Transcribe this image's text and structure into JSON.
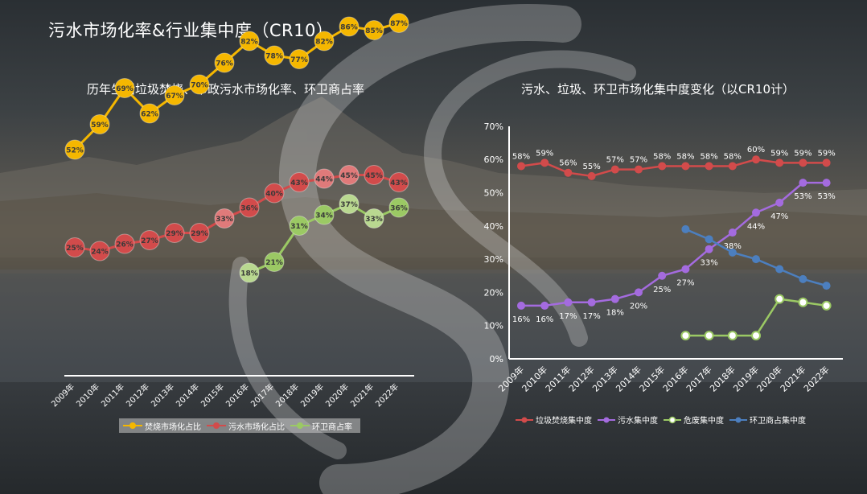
{
  "slide_title": "污水市场化率&行业集中度（CR10）",
  "colors": {
    "yellow": "#f5b700",
    "red": "#d24b4b",
    "green": "#9bc964",
    "purple": "#a46bdf",
    "blue": "#4c7fbf",
    "white": "#ffffff"
  },
  "chart_data": [
    {
      "type": "line",
      "title": "历年生活垃圾焚烧、市政污水市场化率、环卫商占率",
      "categories": [
        "2009年",
        "2010年",
        "2011年",
        "2012年",
        "2013年",
        "2014年",
        "2015年",
        "2016年",
        "2017年",
        "2018年",
        "2019年",
        "2020年",
        "2021年",
        "2022年"
      ],
      "ylim": [
        0,
        100
      ],
      "grid": false,
      "legend_position": "bottom",
      "series": [
        {
          "name": "焚烧市场化占比",
          "color": "#f5b700",
          "values": [
            52,
            59,
            69,
            62,
            67,
            70,
            76,
            82,
            78,
            77,
            82,
            86,
            85,
            87
          ],
          "labels": [
            "52%",
            "59%",
            "69%",
            "62%",
            "67%",
            "70%",
            "76%",
            "82%",
            "78%",
            "77%",
            "82%",
            "86%",
            "85%",
            "87%"
          ]
        },
        {
          "name": "污水市场化占比",
          "color": "#d24b4b",
          "values": [
            25,
            24,
            26,
            27,
            29,
            29,
            33,
            36,
            40,
            43,
            44,
            45,
            45,
            43
          ],
          "labels": [
            "25%",
            "24%",
            "26%",
            "27%",
            "29%",
            "29%",
            "33%",
            "36%",
            "40%",
            "43%",
            "44%",
            "45%",
            "45%",
            "43%"
          ]
        },
        {
          "name": "环卫商占率",
          "color": "#9bc964",
          "values": [
            null,
            null,
            null,
            null,
            null,
            null,
            null,
            18,
            21,
            31,
            34,
            37,
            33,
            36
          ],
          "labels": [
            "",
            "",
            "",
            "",
            "",
            "",
            "",
            "18%",
            "21%",
            "31%",
            "34%",
            "37%",
            "33%",
            "36%"
          ]
        }
      ]
    },
    {
      "type": "line",
      "title": "污水、垃圾、环卫市场化集中度变化（以CR10计）",
      "categories": [
        "2009年",
        "2010年",
        "2011年",
        "2012年",
        "2013年",
        "2014年",
        "2015年",
        "2016年",
        "2017年",
        "2018年",
        "2019年",
        "2020年",
        "2021年",
        "2022年"
      ],
      "ylim": [
        0,
        70
      ],
      "y_ticks": [
        "0%",
        "10%",
        "20%",
        "30%",
        "40%",
        "50%",
        "60%",
        "70%"
      ],
      "grid": false,
      "legend_position": "bottom",
      "series": [
        {
          "name": "垃圾焚烧集中度",
          "color": "#d24b4b",
          "marker": "filled",
          "values": [
            58,
            59,
            56,
            55,
            57,
            57,
            58,
            58,
            58,
            58,
            60,
            59,
            59,
            59
          ],
          "labels": [
            "58%",
            "59%",
            "56%",
            "55%",
            "57%",
            "57%",
            "58%",
            "58%",
            "58%",
            "58%",
            "60%",
            "59%",
            "59%",
            "59%"
          ]
        },
        {
          "name": "污水集中度",
          "color": "#a46bdf",
          "marker": "filled",
          "values": [
            16,
            16,
            17,
            17,
            18,
            20,
            25,
            27,
            33,
            38,
            44,
            47,
            53,
            53
          ],
          "labels": [
            "16%",
            "16%",
            "17%",
            "17%",
            "18%",
            "20%",
            "25%",
            "27%",
            "33%",
            "38%",
            "44%",
            "47%",
            "53%",
            "53%"
          ]
        },
        {
          "name": "危废集中度",
          "color": "#9bc964",
          "marker": "hollow",
          "values": [
            null,
            null,
            null,
            null,
            null,
            null,
            null,
            7,
            7,
            7,
            7,
            18,
            17,
            16
          ],
          "labels": [
            "",
            "",
            "",
            "",
            "",
            "",
            "",
            "",
            "",
            "",
            "",
            "",
            "",
            ""
          ]
        },
        {
          "name": "环卫商占集中度",
          "color": "#4c7fbf",
          "marker": "filled",
          "values": [
            null,
            null,
            null,
            null,
            null,
            null,
            null,
            39,
            36,
            32,
            30,
            27,
            24,
            22
          ],
          "labels": [
            "",
            "",
            "",
            "",
            "",
            "",
            "",
            "",
            "",
            "",
            "",
            "",
            "",
            ""
          ]
        }
      ]
    }
  ]
}
